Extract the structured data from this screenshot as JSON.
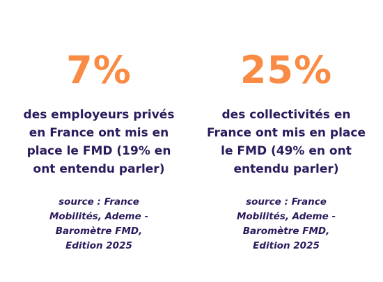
{
  "stats": [
    {
      "value": "7%",
      "description": "des employeurs privés en France ont mis en place le FMD (19% en ont entendu parler)",
      "source": "source : France Mobilités, Ademe - Baromètre FMD, Edition 2025"
    },
    {
      "value": "25%",
      "description": "des collectivités en France ont mis en place le FMD (49% en ont entendu parler)",
      "source": "source : France Mobilités, Ademe - Baromètre FMD, Edition 2025"
    }
  ],
  "colors": {
    "accent": "#f98b44",
    "text": "#2b1a5c",
    "background": "#ffffff"
  }
}
